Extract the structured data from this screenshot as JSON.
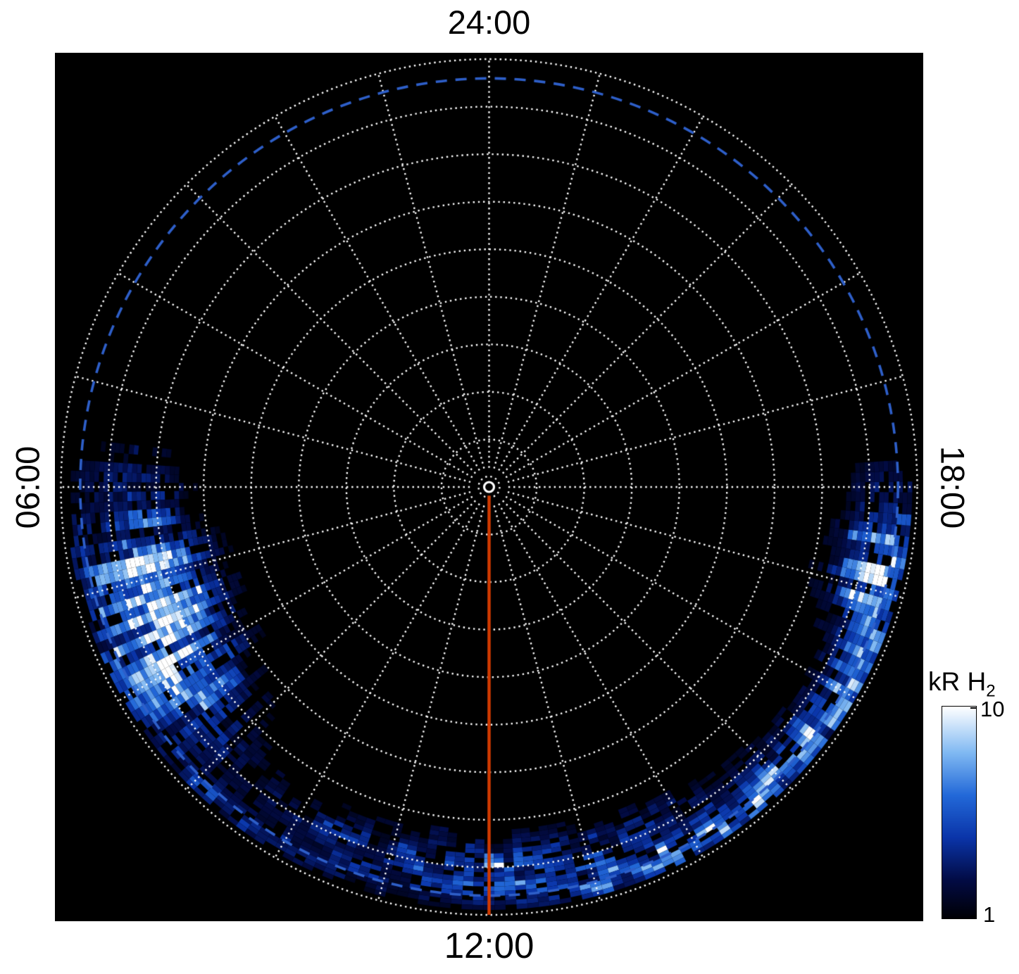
{
  "figure": {
    "background": "#ffffff",
    "plot_background": "#000000"
  },
  "chart_data": {
    "type": "heatmap",
    "projection": "polar_local_time",
    "title": "",
    "angular_labels": {
      "top": "24:00",
      "right": "18:00",
      "bottom": "12:00",
      "left": "06:00"
    },
    "grid": {
      "rings": 9,
      "spokes": 24,
      "line_style": "dotted",
      "color": "#ffffff"
    },
    "reference_circle": {
      "radius_fraction": 0.955,
      "style": "dashed",
      "color": "#2e5fc9"
    },
    "noon_meridian_line": {
      "local_time": 12,
      "color": "#d13a00",
      "style": "solid"
    },
    "intensity": {
      "units_label": "kR H2",
      "min": 1,
      "max": 10,
      "scale": "log"
    },
    "colorbar": {
      "label": "kR H",
      "label_subscript": "2",
      "tick_max": "10",
      "tick_min": "1",
      "stops": [
        {
          "t": 0.0,
          "c": "#000004"
        },
        {
          "t": 0.18,
          "c": "#020b44"
        },
        {
          "t": 0.38,
          "c": "#0a34a8"
        },
        {
          "t": 0.58,
          "c": "#2268d8"
        },
        {
          "t": 0.78,
          "c": "#7fb8f2"
        },
        {
          "t": 1.0,
          "c": "#ffffff"
        }
      ]
    },
    "emission_regions": [
      {
        "name": "dawn-storm-bright-patch",
        "lt_center": 7.4,
        "lt_sigma": 0.85,
        "r_center": 0.84,
        "r_sigma": 0.1,
        "peak": 1.5,
        "streaky": true
      },
      {
        "name": "dusk-rim-streaks",
        "lt_center": 17.3,
        "lt_sigma": 0.45,
        "r_center": 0.92,
        "r_sigma": 0.08,
        "peak": 1.0,
        "streaky": true
      },
      {
        "name": "dusk-arc",
        "lt_center": 15.9,
        "lt_sigma": 0.9,
        "r_center": 0.95,
        "r_sigma": 0.045,
        "peak": 0.85,
        "streaky": true
      },
      {
        "name": "afternoon-rim-arc",
        "lt_center": 14.0,
        "lt_sigma": 1.3,
        "r_center": 0.965,
        "r_sigma": 0.025,
        "peak": 0.8,
        "streaky": false
      },
      {
        "name": "noon-patchy-arc",
        "lt_center": 12.1,
        "lt_sigma": 1.5,
        "r_center": 0.895,
        "r_sigma": 0.05,
        "peak": 0.75,
        "streaky": false
      },
      {
        "name": "morning-rim-faint",
        "lt_center": 9.3,
        "lt_sigma": 0.8,
        "r_center": 0.97,
        "r_sigma": 0.02,
        "peak": 0.5,
        "streaky": false
      }
    ]
  }
}
